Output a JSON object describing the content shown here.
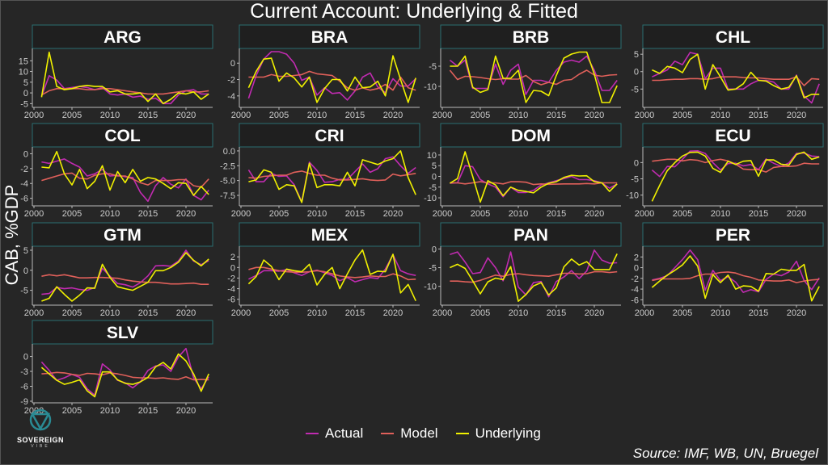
{
  "chart_data": {
    "type": "line",
    "title": "Current Account: Underlying & Fitted",
    "ylabel": "CAB, %GDP",
    "xlabel": "",
    "x": [
      2001,
      2002,
      2003,
      2004,
      2005,
      2006,
      2007,
      2008,
      2009,
      2010,
      2011,
      2012,
      2013,
      2014,
      2015,
      2016,
      2017,
      2018,
      2019,
      2020,
      2021,
      2022,
      2023
    ],
    "xticks": [
      2000,
      2005,
      2010,
      2015,
      2020
    ],
    "xlim": [
      2000,
      2024
    ],
    "series": [
      {
        "key": "actual",
        "name": "Actual",
        "color": "#c02bb0"
      },
      {
        "key": "model",
        "name": "Model",
        "color": "#e0605a"
      },
      {
        "key": "underlying",
        "name": "Underlying",
        "color": "#f0f000"
      }
    ],
    "legend_position": "bottom",
    "panels": [
      {
        "name": "ARG",
        "ylim": [
          -6,
          20
        ],
        "yticks": [
          -5,
          0,
          5,
          10,
          15
        ],
        "actual": [
          -1.5,
          8,
          6,
          2,
          2.5,
          3,
          2.5,
          1.5,
          2.5,
          -0.5,
          -1,
          -0.5,
          -2,
          -1.5,
          -3,
          -2.5,
          -5,
          -5,
          -1,
          1,
          1.5,
          -0.5,
          -0.5
        ],
        "model": [
          -1,
          1,
          2,
          2,
          2,
          2,
          1.5,
          1.5,
          2,
          2,
          1.5,
          1,
          0.5,
          0,
          -0.5,
          -0.5,
          -0.5,
          0,
          0.5,
          1,
          0.5,
          0.5,
          1
        ],
        "underlying": [
          -2,
          19,
          3,
          1.5,
          2,
          3,
          3.5,
          3,
          3,
          0.5,
          1,
          -0.5,
          -0.5,
          0,
          -4,
          -0.5,
          -5,
          -3,
          0,
          -0.5,
          0.5,
          -3,
          -0.5
        ]
      },
      {
        "name": "BRA",
        "ylim": [
          -5.2,
          1.6
        ],
        "yticks": [
          -4,
          -2,
          0
        ],
        "actual": [
          -4.3,
          -1.5,
          0.5,
          1.4,
          1.4,
          1.1,
          0,
          -2.1,
          -1.7,
          -3.9,
          -3,
          -3.7,
          -3.6,
          -4.5,
          -3.4,
          -1.7,
          -1.2,
          -2.9,
          -3.6,
          -1.9,
          -2.8,
          -2.8,
          -1.9
        ],
        "model": [
          -1.7,
          -1.7,
          -1.7,
          -1.4,
          -1.6,
          -1.6,
          -1.5,
          -1.4,
          -1,
          -1.3,
          -1.4,
          -1.5,
          -2.2,
          -3,
          -3.3,
          -3,
          -3.3,
          -3.1,
          -2.6,
          -3.3,
          -1.7,
          -3,
          -3.3
        ],
        "underlying": [
          -3,
          -1,
          0.5,
          0.6,
          -2.2,
          -1.2,
          -1.8,
          -2.9,
          -1.7,
          -4.8,
          -3.1,
          -2,
          -2,
          -3.4,
          -1.7,
          -3,
          -2.9,
          -2.2,
          -4,
          0.9,
          -2,
          -4.8,
          -1.8
        ]
      },
      {
        "name": "BRB",
        "ylim": [
          -14.8,
          -1
        ],
        "yticks": [
          -10,
          -5
        ],
        "actual": [
          -3.5,
          -5,
          -3.5,
          -10.5,
          -10.5,
          -10.5,
          -4.5,
          -9.5,
          -6,
          -4.5,
          -12,
          -8.5,
          -8.5,
          -9,
          -6,
          -4,
          -3.5,
          -4,
          -2.5,
          -6,
          -11,
          -11,
          -8.5
        ],
        "model": [
          -6,
          -8.3,
          -7.5,
          -7.6,
          -7.8,
          -8.1,
          -8.3,
          -8.1,
          -8.2,
          -8.2,
          -7.3,
          -8.8,
          -9.6,
          -9,
          -9.5,
          -8.5,
          -8.3,
          -7,
          -6,
          -7.2,
          -7.5,
          -7.2,
          -7.1
        ],
        "underlying": [
          -5,
          -5,
          -2.5,
          -10.2,
          -11.5,
          -10.8,
          -2.5,
          -8,
          -8,
          -6,
          -14,
          -11,
          -11.2,
          -12.3,
          -7.3,
          -3,
          -2,
          -1.5,
          -1.5,
          -7,
          -14,
          -14,
          -9.8
        ]
      },
      {
        "name": "CHL",
        "ylim": [
          -9.8,
          6.2
        ],
        "yticks": [
          -5,
          0,
          5
        ],
        "actual": [
          -1.5,
          -0.5,
          0.5,
          3,
          2,
          5.5,
          5,
          -2,
          1,
          1,
          -5,
          -5,
          -5,
          -3.5,
          -2.5,
          -2.5,
          -3,
          -5,
          -5,
          -1,
          -7,
          -9,
          -3.5
        ],
        "model": [
          -2.5,
          -2.5,
          -2.3,
          -2.2,
          -2.2,
          -2,
          -2,
          -2.2,
          -2,
          -1.5,
          -1.5,
          -1.5,
          -1.7,
          -1.8,
          -1.8,
          -2,
          -2.2,
          -2.2,
          -2.2,
          -1.5,
          -4,
          -2,
          -2.2
        ],
        "underlying": [
          0.5,
          -0.5,
          1.5,
          1,
          -0.3,
          3.5,
          5,
          -5,
          2,
          -1.5,
          -5.3,
          -5,
          -3.5,
          -0.2,
          -2.5,
          -2.7,
          -4,
          -5,
          -4.5,
          -1.2,
          -7.5,
          -6.5,
          -6.5
        ]
      },
      {
        "name": "COL",
        "ylim": [
          -6.8,
          0.7
        ],
        "yticks": [
          -6,
          -4,
          -2,
          0
        ],
        "actual": [
          -1.1,
          -1.3,
          -1,
          -0.7,
          -1.3,
          -1.8,
          -3,
          -2.7,
          -2.1,
          -3,
          -2.9,
          -3.1,
          -3.2,
          -5.2,
          -6.4,
          -4.3,
          -3.2,
          -4.1,
          -4.6,
          -3.4,
          -5.6,
          -6.2,
          -4.9
        ],
        "model": [
          -3.6,
          -3.3,
          -3,
          -2.7,
          -2.6,
          -3.3,
          -3.4,
          -2.9,
          -2.7,
          -2.7,
          -3,
          -3,
          -3.4,
          -3.9,
          -4.2,
          -3.6,
          -3.6,
          -3.6,
          -3.5,
          -3.5,
          -4.3,
          -4.5,
          -3.4
        ],
        "underlying": [
          -1.8,
          -1.9,
          0.3,
          -2.7,
          -4.2,
          -2.1,
          -4.7,
          -3.7,
          -1.6,
          -4.9,
          -2.4,
          -3.9,
          -2.1,
          -3.7,
          -3.2,
          -3.4,
          -4,
          -4.7,
          -3.9,
          -4,
          -5.6,
          -4.4,
          -5.5
        ]
      },
      {
        "name": "CRI",
        "ylim": [
          -9,
          0.4
        ],
        "yticks": [
          -7.5,
          -5.0,
          -2.5,
          0.0
        ],
        "ytick_decimals": 1,
        "actual": [
          -3.2,
          -5.2,
          -5.2,
          -3.8,
          -4.3,
          -4.2,
          -5.7,
          -8.6,
          -1.9,
          -3.3,
          -5.3,
          -5.2,
          -4.8,
          -4.8,
          -3.5,
          -2.2,
          -3.6,
          -3,
          -1.3,
          -1,
          -2.5,
          -3.8,
          -2.8
        ],
        "model": [
          -4.5,
          -4.6,
          -4.3,
          -4.2,
          -4.1,
          -4.1,
          -3.6,
          -3.4,
          -3.8,
          -4.1,
          -4.1,
          -4.6,
          -4.9,
          -4.9,
          -4.8,
          -4.7,
          -4.9,
          -5,
          -4.9,
          -3.9,
          -4.2,
          -4,
          -3.8
        ],
        "underlying": [
          -5.2,
          -4.9,
          -3.2,
          -3.6,
          -6.5,
          -5.7,
          -5.9,
          -8.7,
          -2.1,
          -6.2,
          -5.7,
          -5.7,
          -5.9,
          -3.6,
          -5.9,
          -1.5,
          -1.9,
          -2.3,
          -1.7,
          -1.3,
          0,
          -4.5,
          -7.4
        ]
      },
      {
        "name": "DOM",
        "ylim": [
          -13,
          13
        ],
        "yticks": [
          -10,
          -5,
          0,
          5,
          10
        ],
        "actual": [
          -3.2,
          -3,
          5,
          4.5,
          -1.5,
          -3.5,
          -5,
          -9.5,
          -5,
          -7.5,
          -7.5,
          -6.5,
          -4,
          -3,
          -2,
          -1,
          0,
          -1.5,
          -1.5,
          -2,
          -3,
          -5.5,
          -3.5
        ],
        "model": [
          -3,
          -3,
          -3.5,
          -3,
          -2.5,
          -3,
          -3,
          -3.5,
          -2.5,
          -2.5,
          -2.7,
          -3.8,
          -3.5,
          -3.7,
          -3.6,
          -3.5,
          -3.5,
          -3.5,
          -3.3,
          -3.5,
          -3,
          -3,
          -3
        ],
        "underlying": [
          -3.2,
          -1,
          11.5,
          0,
          -12,
          -2,
          -4,
          -9,
          -5,
          -6.5,
          -7,
          -7.7,
          -5,
          -3.2,
          -2.5,
          -0.5,
          0.5,
          0.2,
          0.3,
          -2.5,
          -3,
          -7,
          -3.5
        ]
      },
      {
        "name": "ECU",
        "ylim": [
          -12.8,
          4.3
        ],
        "yticks": [
          -10,
          -5,
          0
        ],
        "actual": [
          -2.3,
          -4.3,
          -1.2,
          -1.3,
          1,
          3.5,
          3.6,
          2.8,
          0,
          -2.3,
          -0.3,
          -0.2,
          -1,
          -0.6,
          -2.2,
          1.1,
          -0.2,
          -1.2,
          -0.1,
          2.8,
          2.9,
          2,
          1.8
        ],
        "model": [
          0.4,
          0.7,
          1,
          1,
          0.5,
          0.9,
          0.7,
          0,
          0.6,
          1,
          0.5,
          -0.5,
          -2,
          -2.2,
          -2.2,
          -2.9,
          -1.5,
          -1.2,
          -1.2,
          -1,
          -0.2,
          -0.4,
          -0.4
        ],
        "underlying": [
          -11.9,
          -7,
          -2.5,
          0,
          2,
          3.1,
          3.2,
          2,
          -1.8,
          -3,
          0.4,
          -0.6,
          0.4,
          0.6,
          -4.2,
          0.8,
          0.8,
          -0.5,
          -0.8,
          2.5,
          3.2,
          1,
          1.7
        ]
      },
      {
        "name": "GTM",
        "ylim": [
          -8.3,
          5.6
        ],
        "yticks": [
          -5,
          0,
          5
        ],
        "actual": [
          -6,
          -5.8,
          -4.3,
          -4.6,
          -4.4,
          -4.8,
          -5,
          -4.3,
          0.5,
          -1.5,
          -3.3,
          -3.6,
          -4.2,
          -3.1,
          -1.4,
          1.1,
          1.2,
          1,
          2.3,
          5,
          2.3,
          1.4,
          2.4
        ],
        "model": [
          -1.5,
          -1.1,
          -1.4,
          -1.1,
          -1.5,
          -1.9,
          -1.9,
          -1.8,
          -1.8,
          -1.9,
          -2,
          -2.4,
          -2.7,
          -2.9,
          -3,
          -3,
          -3.2,
          -3.4,
          -3.4,
          -3.3,
          -3.2,
          -3.5,
          -3.5
        ],
        "underlying": [
          -7.7,
          -7,
          -4.1,
          -6,
          -7.7,
          -6.2,
          -4.4,
          -4.5,
          1.5,
          -1.8,
          -4.1,
          -4.6,
          -5,
          -4,
          -3,
          -0.1,
          -0.1,
          0.7,
          2,
          4.4,
          2.5,
          1.1,
          2.8
        ]
      },
      {
        "name": "MEX",
        "ylim": [
          -6.8,
          3.7
        ],
        "yticks": [
          -6,
          -4,
          -2,
          0,
          2
        ],
        "actual": [
          -2.2,
          -1.5,
          -0.6,
          -0.6,
          -0.7,
          -0.4,
          -1,
          -1.5,
          -0.8,
          -0.5,
          -1,
          -1.5,
          -2.5,
          -1.9,
          -2.7,
          -2.3,
          -1.9,
          -2.1,
          -0.3,
          2.4,
          -0.6,
          -1.2,
          -1.5
        ],
        "model": [
          -0.4,
          0,
          0,
          -0.3,
          -0.6,
          -0.8,
          -0.9,
          -0.9,
          -0.8,
          -0.6,
          -0.8,
          -1.2,
          -1.6,
          -1.8,
          -1.9,
          -1.8,
          -1.6,
          -1.7,
          -1.7,
          -1.2,
          -1.6,
          -2.3,
          -2.2
        ],
        "underlying": [
          -3.1,
          -1.7,
          1.4,
          0.2,
          -2.3,
          -0.3,
          -0.6,
          -0.8,
          0.6,
          -3.3,
          -1.3,
          0,
          -4,
          -1.2,
          1.4,
          3.3,
          -1.3,
          -0.7,
          -0.8,
          2.5,
          -4.8,
          -3.2,
          -6.3
        ]
      },
      {
        "name": "PAN",
        "ylim": [
          -14.6,
          0.3
        ],
        "yticks": [
          -10,
          -5,
          0
        ],
        "actual": [
          -1.5,
          -0.8,
          -3.5,
          -6.6,
          -6.3,
          -2.4,
          -5,
          -8.5,
          -0.8,
          -10.2,
          -12.3,
          -9,
          -8.7,
          -12.8,
          -8.7,
          -7.5,
          -5.8,
          -7.9,
          -5.9,
          -0.3,
          -3,
          -3.8,
          -3.7
        ],
        "model": [
          -8.6,
          -8.6,
          -8.8,
          -8.9,
          -8.4,
          -7.7,
          -7,
          -7.3,
          -6.8,
          -6.6,
          -6.9,
          -7.1,
          -7.2,
          -7.3,
          -6.9,
          -6.5,
          -6.5,
          -6.7,
          -6.6,
          -6.1,
          -6.1,
          -6.3,
          -6.1
        ],
        "underlying": [
          -5,
          -4.1,
          -5.2,
          -8.5,
          -12,
          -8.8,
          -7.8,
          -8.2,
          -4.7,
          -14,
          -12.2,
          -9.9,
          -9,
          -12.3,
          -10.4,
          -4.8,
          -2.7,
          -4.3,
          -3.4,
          -5.5,
          -5.5,
          -5.5,
          -1.3
        ]
      },
      {
        "name": "PER",
        "ylim": [
          -6.7,
          3.7
        ],
        "yticks": [
          -6,
          -4,
          -2,
          0,
          2
        ],
        "actual": [
          -2.3,
          -2,
          -1.5,
          0,
          1.5,
          3.3,
          1.5,
          -4.2,
          -0.5,
          -2.4,
          -1.7,
          -2.7,
          -4.6,
          -4.1,
          -4.5,
          -2.2,
          -1.2,
          -1.5,
          -0.8,
          1.2,
          -2.4,
          -4.1,
          -1.9
        ],
        "model": [
          -2.4,
          -2.1,
          -2.1,
          -2.1,
          -2.1,
          -2,
          -1.5,
          -1.2,
          -1.2,
          -0.9,
          -0.8,
          -1,
          -1.5,
          -1.8,
          -2.3,
          -2.4,
          -2.5,
          -2.5,
          -2.3,
          -2.8,
          -2.5,
          -2.3,
          -2.2
        ],
        "underlying": [
          -3.7,
          -2.5,
          -1.4,
          -0.5,
          0.5,
          2.2,
          0.3,
          -5.7,
          -1.3,
          -2.8,
          -1.4,
          -4,
          -3.4,
          -3.5,
          -4.4,
          -1.1,
          -1.2,
          -0.3,
          -0.5,
          -0.5,
          0.6,
          -6.2,
          -3.5
        ]
      },
      {
        "name": "SLV",
        "ylim": [
          -9,
          2.2
        ],
        "yticks": [
          -9,
          -6,
          -3,
          0
        ],
        "actual": [
          -1.1,
          -2.8,
          -4.8,
          -4.3,
          -3.6,
          -4.2,
          -6.5,
          -7.8,
          -1.5,
          -2.7,
          -4.8,
          -5.3,
          -6.3,
          -5.1,
          -2.8,
          -1.9,
          -1.7,
          -3,
          -0.1,
          1.6,
          -4.3,
          -6.5,
          -4.1
        ],
        "model": [
          -3.5,
          -3.4,
          -3.2,
          -3.3,
          -3.6,
          -3.8,
          -3.4,
          -3.5,
          -3.7,
          -3.3,
          -3.5,
          -3.8,
          -4.2,
          -4.3,
          -4.3,
          -4.4,
          -4.3,
          -4.5,
          -4.6,
          -4.1,
          -4.7,
          -4.6,
          -4.7
        ],
        "underlying": [
          -2.2,
          -3.5,
          -4.8,
          -5.6,
          -5.2,
          -4.7,
          -6.9,
          -8.1,
          -3.1,
          -3.1,
          -4.7,
          -5.4,
          -5.6,
          -5.1,
          -4.2,
          -2.1,
          -1.2,
          -2.5,
          0.5,
          -0.9,
          -3.5,
          -7,
          -3.5
        ]
      }
    ]
  },
  "source": "Source: IMF, WB, UN, Bruegel",
  "logo": {
    "name": "SOVEREIGN",
    "sub": "VIBE"
  }
}
